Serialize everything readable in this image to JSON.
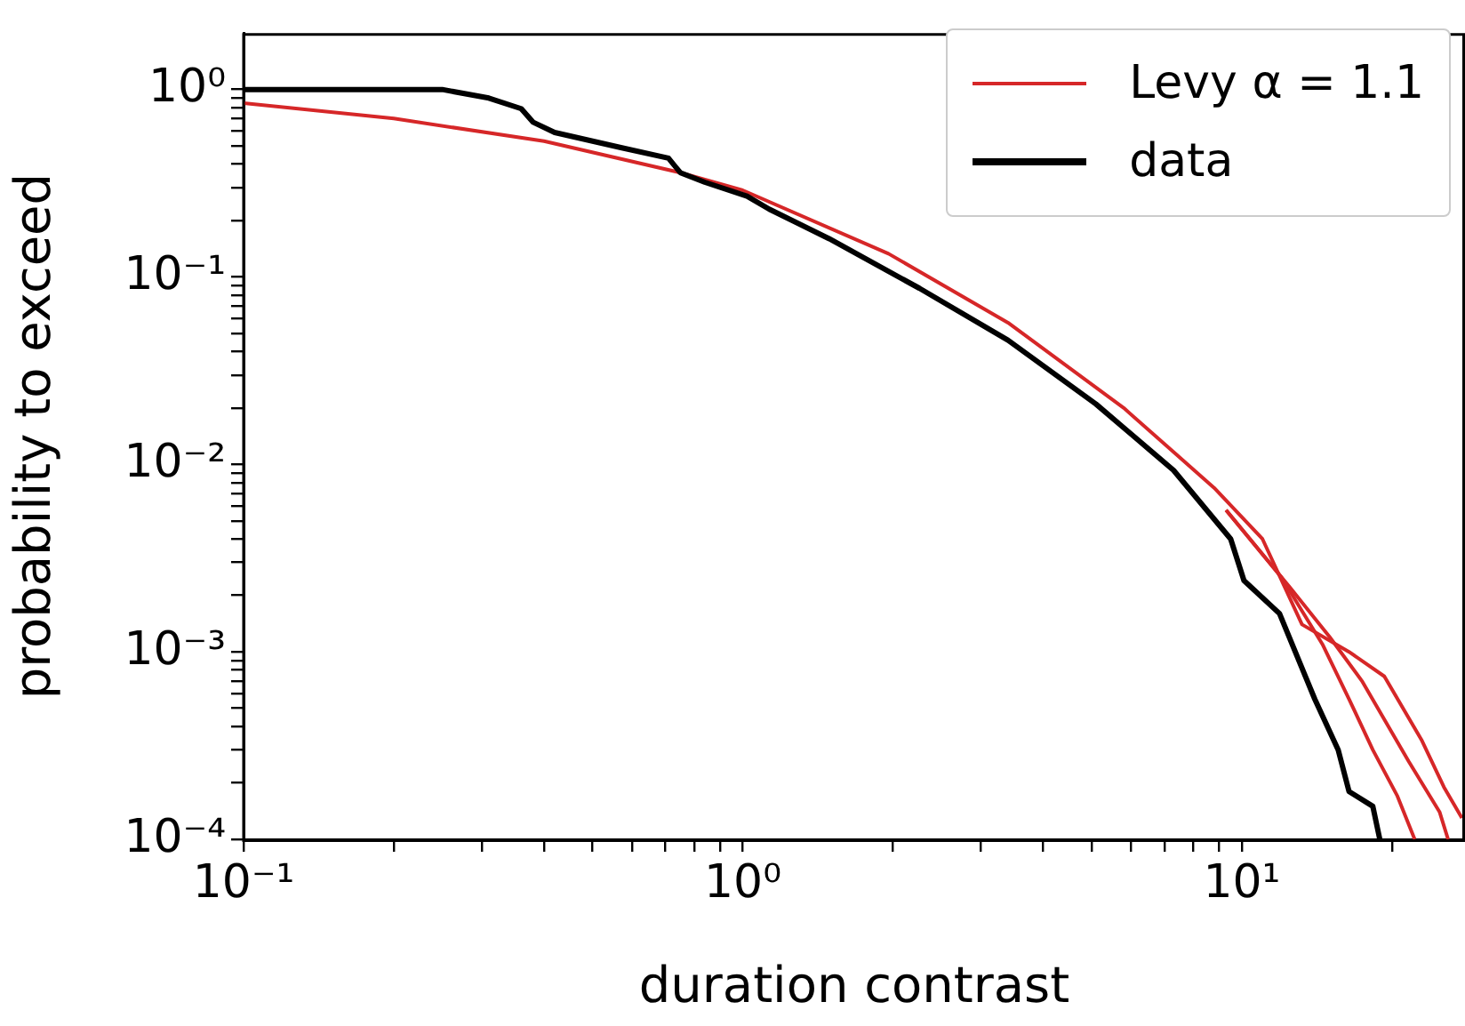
{
  "chart_data": {
    "type": "line",
    "xlabel": "duration contrast",
    "ylabel": "probability to exceed",
    "log": "xy",
    "grid": false,
    "legend": "top right",
    "xlim": [
      0.1,
      28
    ],
    "ylim": [
      0.0001,
      2
    ],
    "xticks": [
      {
        "value": 0.1,
        "label": "10⁻¹"
      },
      {
        "value": 0.2,
        "label": null
      },
      {
        "value": 0.3,
        "label": null
      },
      {
        "value": 0.4,
        "label": null
      },
      {
        "value": 0.5,
        "label": null
      },
      {
        "value": 0.6,
        "label": null
      },
      {
        "value": 0.7,
        "label": null
      },
      {
        "value": 0.8,
        "label": null
      },
      {
        "value": 0.9,
        "label": null
      },
      {
        "value": 1,
        "label": "10⁰"
      },
      {
        "value": 2,
        "label": null
      },
      {
        "value": 3,
        "label": null
      },
      {
        "value": 4,
        "label": null
      },
      {
        "value": 5,
        "label": null
      },
      {
        "value": 6,
        "label": null
      },
      {
        "value": 7,
        "label": null
      },
      {
        "value": 8,
        "label": null
      },
      {
        "value": 9,
        "label": null
      },
      {
        "value": 10,
        "label": "10¹"
      },
      {
        "value": 20,
        "label": null
      }
    ],
    "yticks": [
      {
        "value": 0.0001,
        "label": "10⁻⁴"
      },
      {
        "value": 0.0002,
        "label": null
      },
      {
        "value": 0.0003,
        "label": null
      },
      {
        "value": 0.0004,
        "label": null
      },
      {
        "value": 0.0005,
        "label": null
      },
      {
        "value": 0.0006,
        "label": null
      },
      {
        "value": 0.0007,
        "label": null
      },
      {
        "value": 0.0008,
        "label": null
      },
      {
        "value": 0.0009,
        "label": null
      },
      {
        "value": 0.001,
        "label": "10⁻³"
      },
      {
        "value": 0.002,
        "label": null
      },
      {
        "value": 0.003,
        "label": null
      },
      {
        "value": 0.004,
        "label": null
      },
      {
        "value": 0.005,
        "label": null
      },
      {
        "value": 0.006,
        "label": null
      },
      {
        "value": 0.007,
        "label": null
      },
      {
        "value": 0.008,
        "label": null
      },
      {
        "value": 0.009,
        "label": null
      },
      {
        "value": 0.01,
        "label": "10⁻²"
      },
      {
        "value": 0.02,
        "label": null
      },
      {
        "value": 0.03,
        "label": null
      },
      {
        "value": 0.04,
        "label": null
      },
      {
        "value": 0.05,
        "label": null
      },
      {
        "value": 0.06,
        "label": null
      },
      {
        "value": 0.07,
        "label": null
      },
      {
        "value": 0.08,
        "label": null
      },
      {
        "value": 0.09,
        "label": null
      },
      {
        "value": 0.1,
        "label": "10⁻¹"
      },
      {
        "value": 0.2,
        "label": null
      },
      {
        "value": 0.3,
        "label": null
      },
      {
        "value": 0.4,
        "label": null
      },
      {
        "value": 0.5,
        "label": null
      },
      {
        "value": 0.6,
        "label": null
      },
      {
        "value": 0.7,
        "label": null
      },
      {
        "value": 0.8,
        "label": null
      },
      {
        "value": 0.9,
        "label": null
      },
      {
        "value": 1,
        "label": "10⁰"
      }
    ],
    "series": [
      {
        "name": "Levy α = 1.1",
        "color": "#d62728",
        "x": [
          0.1,
          0.2,
          0.4,
          0.75,
          1.0,
          1.96,
          3.4,
          5.8,
          8.8,
          11.0,
          13.2,
          16.4,
          19.3,
          22.9,
          25.4,
          27.6
        ],
        "values": [
          0.845,
          0.7,
          0.53,
          0.36,
          0.29,
          0.133,
          0.057,
          0.02,
          0.0075,
          0.004,
          0.0014,
          0.001,
          0.00074,
          0.00034,
          0.00019,
          0.00013
        ]
      },
      {
        "color": "#d62728",
        "x": [
          9.3,
          12,
          14.5,
          16.4,
          18.3,
          20.5,
          22.2
        ],
        "values": [
          0.0057,
          0.0025,
          0.0011,
          0.00056,
          0.0003,
          0.00017,
          0.0001
        ]
      },
      {
        "color": "#d62728",
        "x": [
          9.3,
          12.5,
          15,
          17.4,
          21.6,
          24.9,
          25.9
        ],
        "values": [
          0.0057,
          0.0022,
          0.0012,
          0.0007,
          0.00026,
          0.00014,
          0.0001
        ]
      },
      {
        "name": "data",
        "color": "#000000",
        "x": [
          0.1,
          0.25,
          0.31,
          0.36,
          0.38,
          0.42,
          0.57,
          0.71,
          0.75,
          0.84,
          1.02,
          1.13,
          1.49,
          2.26,
          3.4,
          5.1,
          7.3,
          9.5,
          10.1,
          11.9,
          14.0,
          15.6,
          16.4,
          18.3,
          18.9
        ],
        "values": [
          1,
          1,
          0.9,
          0.79,
          0.67,
          0.59,
          0.49,
          0.43,
          0.36,
          0.32,
          0.27,
          0.23,
          0.16,
          0.087,
          0.046,
          0.021,
          0.0093,
          0.004,
          0.0024,
          0.0016,
          0.00056,
          0.0003,
          0.00018,
          0.00015,
          0.0001
        ]
      }
    ]
  }
}
